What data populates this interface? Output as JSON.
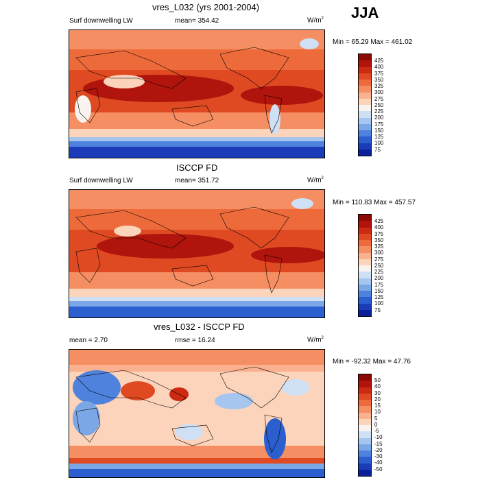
{
  "season": "JJA",
  "panels": [
    {
      "title": "vres_L032 (yrs 2001-2004)",
      "left_label": "Surf downwelling LW",
      "center_label": "mean= 354.42",
      "units": "W/m",
      "units_exp": "2",
      "minmax": "Min =  65.29 Max = 461.02"
    },
    {
      "title": "ISCCP FD",
      "left_label": "Surf downwelling LW",
      "center_label": "mean= 351.72",
      "units": "W/m",
      "units_exp": "2",
      "minmax": "Min = 110.83 Max = 457.57"
    },
    {
      "title": "vres_L032 - ISCCP FD",
      "left_label": "mean =   2.70",
      "center_label": "rmse =  16.24",
      "units": "W/m",
      "units_exp": "2",
      "minmax": "Min = -92.32 Max =  47.76"
    }
  ],
  "colorbar_abs": {
    "labels": [
      "425",
      "400",
      "375",
      "350",
      "325",
      "300",
      "275",
      "250",
      "225",
      "200",
      "175",
      "150",
      "125",
      "100",
      "75"
    ],
    "colors": [
      "#8c0a05",
      "#b0140c",
      "#cc2a12",
      "#e04a22",
      "#ed6a3a",
      "#f58e62",
      "#fab190",
      "#fcd3bb",
      "#f8f3ee",
      "#cfe0f5",
      "#a7c6ef",
      "#7ca7e6",
      "#4f82dc",
      "#2b5fd0",
      "#1a3cb8",
      "#0b1f99"
    ]
  },
  "colorbar_diff": {
    "labels": [
      "50",
      "40",
      "30",
      "20",
      "15",
      "10",
      "5",
      "0",
      "-5",
      "-10",
      "-15",
      "-20",
      "-30",
      "-40",
      "-50"
    ],
    "colors": [
      "#8c0a05",
      "#b0140c",
      "#cc2a12",
      "#e04a22",
      "#ed6a3a",
      "#f58e62",
      "#fab190",
      "#fcd3bb",
      "#f8f3ee",
      "#cfe0f5",
      "#a7c6ef",
      "#7ca7e6",
      "#4f82dc",
      "#2b5fd0",
      "#1a3cb8",
      "#0b1f99"
    ]
  },
  "chart_data": [
    {
      "type": "heatmap",
      "title": "vres_L032 (yrs 2001-2004)",
      "variable": "Surf downwelling LW",
      "units": "W/m2",
      "mean": 354.42,
      "min": 65.29,
      "max": 461.02,
      "contour_levels": [
        75,
        100,
        125,
        150,
        175,
        200,
        225,
        250,
        275,
        300,
        325,
        350,
        375,
        400,
        425
      ]
    },
    {
      "type": "heatmap",
      "title": "ISCCP FD",
      "variable": "Surf downwelling LW",
      "units": "W/m2",
      "mean": 351.72,
      "min": 110.83,
      "max": 457.57,
      "contour_levels": [
        75,
        100,
        125,
        150,
        175,
        200,
        225,
        250,
        275,
        300,
        325,
        350,
        375,
        400,
        425
      ]
    },
    {
      "type": "heatmap",
      "title": "vres_L032 - ISCCP FD",
      "units": "W/m2",
      "mean": 2.7,
      "rmse": 16.24,
      "min": -92.32,
      "max": 47.76,
      "contour_levels": [
        -50,
        -40,
        -30,
        -20,
        -15,
        -10,
        -5,
        0,
        5,
        10,
        15,
        20,
        30,
        40,
        50
      ]
    }
  ]
}
